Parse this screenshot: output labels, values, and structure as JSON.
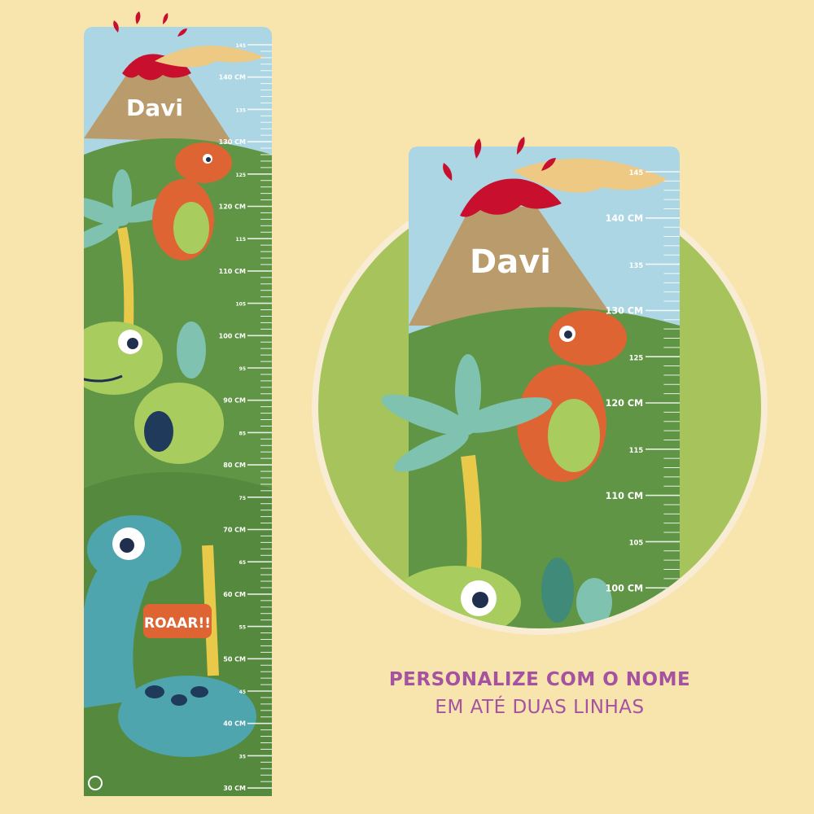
{
  "product": {
    "name_on_chart": "Davi",
    "speech_bubble": "ROAAR!!",
    "brand_logo": "m-logo"
  },
  "ruler": {
    "unit": "CM",
    "labels": [
      30,
      35,
      40,
      45,
      50,
      55,
      60,
      65,
      70,
      75,
      80,
      85,
      90,
      95,
      100,
      105,
      110,
      115,
      120,
      125,
      130,
      135,
      140,
      145
    ],
    "detail_labels": [
      100,
      105,
      110,
      115,
      120,
      125,
      130,
      135,
      140,
      145
    ]
  },
  "caption": {
    "line1": "PERSONALIZE COM O NOME",
    "line2": "EM ATÉ DUAS LINHAS"
  },
  "colors": {
    "background": "#f8e4ad",
    "sky": "#acd6e3",
    "grass_dark": "#5f9544",
    "grass_light": "#a7c35c",
    "volcano": "#b99b6c",
    "lava": "#c8102e",
    "caption": "#a552a0",
    "orange_dino": "#de6533",
    "blue_dino": "#4fa5ad",
    "green_dino": "#a8cc5e"
  }
}
